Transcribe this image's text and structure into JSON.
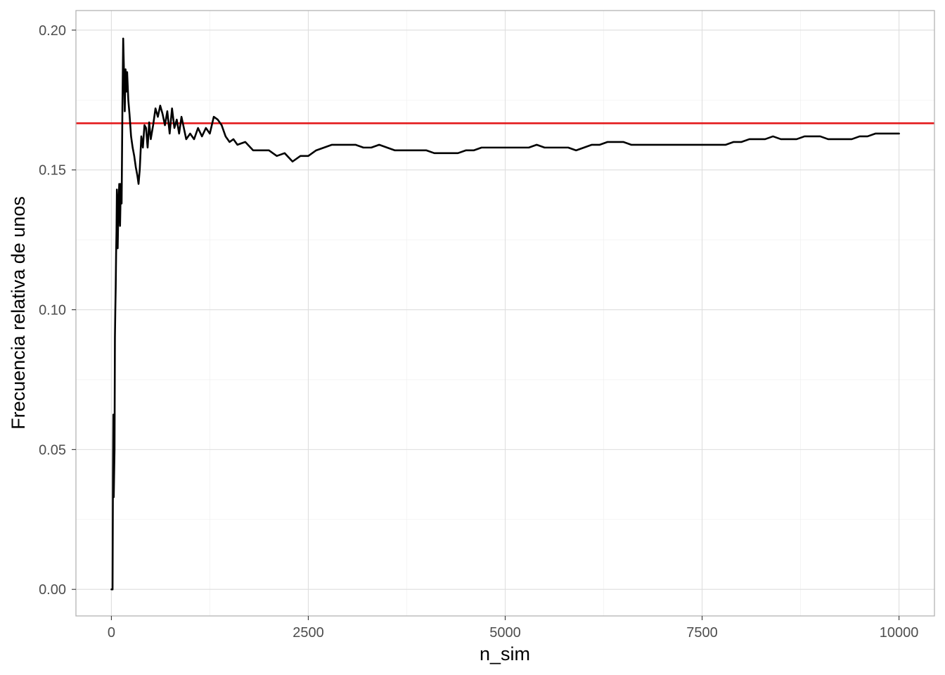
{
  "chart_data": {
    "type": "line",
    "title": "",
    "xlabel": "n_sim",
    "ylabel": "Frecuencia relativa de unos",
    "xlim": [
      -450,
      10450
    ],
    "ylim": [
      -0.0095,
      0.207
    ],
    "x_ticks": [
      0,
      2500,
      5000,
      7500,
      10000
    ],
    "x_tick_labels": [
      "0",
      "2500",
      "5000",
      "7500",
      "10000"
    ],
    "y_ticks": [
      0.0,
      0.05,
      0.1,
      0.15,
      0.2
    ],
    "y_tick_labels": [
      "0.00",
      "0.05",
      "0.10",
      "0.15",
      "0.20"
    ],
    "grid": true,
    "reference_line": {
      "y": 0.1667,
      "color": "#e41a1c"
    },
    "series": [
      {
        "color": "#000000",
        "points": [
          [
            1,
            0.0
          ],
          [
            15,
            0.0
          ],
          [
            20,
            0.04
          ],
          [
            25,
            0.0625
          ],
          [
            30,
            0.033
          ],
          [
            40,
            0.05
          ],
          [
            45,
            0.09
          ],
          [
            50,
            0.1
          ],
          [
            55,
            0.108
          ],
          [
            60,
            0.12
          ],
          [
            65,
            0.128
          ],
          [
            70,
            0.143
          ],
          [
            75,
            0.135
          ],
          [
            80,
            0.122
          ],
          [
            90,
            0.138
          ],
          [
            100,
            0.145
          ],
          [
            110,
            0.13
          ],
          [
            120,
            0.145
          ],
          [
            130,
            0.138
          ],
          [
            140,
            0.172
          ],
          [
            150,
            0.197
          ],
          [
            160,
            0.185
          ],
          [
            170,
            0.171
          ],
          [
            180,
            0.186
          ],
          [
            190,
            0.178
          ],
          [
            200,
            0.185
          ],
          [
            215,
            0.175
          ],
          [
            230,
            0.17
          ],
          [
            250,
            0.162
          ],
          [
            270,
            0.158
          ],
          [
            290,
            0.155
          ],
          [
            310,
            0.151
          ],
          [
            330,
            0.148
          ],
          [
            345,
            0.145
          ],
          [
            360,
            0.15
          ],
          [
            380,
            0.162
          ],
          [
            400,
            0.158
          ],
          [
            420,
            0.166
          ],
          [
            440,
            0.165
          ],
          [
            460,
            0.158
          ],
          [
            480,
            0.167
          ],
          [
            500,
            0.161
          ],
          [
            530,
            0.166
          ],
          [
            560,
            0.172
          ],
          [
            590,
            0.169
          ],
          [
            620,
            0.173
          ],
          [
            650,
            0.17
          ],
          [
            680,
            0.166
          ],
          [
            710,
            0.171
          ],
          [
            740,
            0.163
          ],
          [
            770,
            0.172
          ],
          [
            800,
            0.165
          ],
          [
            830,
            0.168
          ],
          [
            860,
            0.163
          ],
          [
            890,
            0.169
          ],
          [
            920,
            0.165
          ],
          [
            950,
            0.161
          ],
          [
            1000,
            0.163
          ],
          [
            1050,
            0.161
          ],
          [
            1100,
            0.165
          ],
          [
            1150,
            0.162
          ],
          [
            1200,
            0.165
          ],
          [
            1250,
            0.163
          ],
          [
            1300,
            0.169
          ],
          [
            1350,
            0.168
          ],
          [
            1400,
            0.166
          ],
          [
            1450,
            0.162
          ],
          [
            1500,
            0.16
          ],
          [
            1550,
            0.161
          ],
          [
            1600,
            0.159
          ],
          [
            1700,
            0.16
          ],
          [
            1800,
            0.157
          ],
          [
            1900,
            0.157
          ],
          [
            2000,
            0.157
          ],
          [
            2100,
            0.155
          ],
          [
            2200,
            0.156
          ],
          [
            2300,
            0.153
          ],
          [
            2400,
            0.155
          ],
          [
            2500,
            0.155
          ],
          [
            2600,
            0.157
          ],
          [
            2700,
            0.158
          ],
          [
            2800,
            0.159
          ],
          [
            2900,
            0.159
          ],
          [
            3000,
            0.159
          ],
          [
            3100,
            0.159
          ],
          [
            3200,
            0.158
          ],
          [
            3300,
            0.158
          ],
          [
            3400,
            0.159
          ],
          [
            3500,
            0.158
          ],
          [
            3600,
            0.157
          ],
          [
            3700,
            0.157
          ],
          [
            3800,
            0.157
          ],
          [
            3900,
            0.157
          ],
          [
            4000,
            0.157
          ],
          [
            4100,
            0.156
          ],
          [
            4200,
            0.156
          ],
          [
            4300,
            0.156
          ],
          [
            4400,
            0.156
          ],
          [
            4500,
            0.157
          ],
          [
            4600,
            0.157
          ],
          [
            4700,
            0.158
          ],
          [
            4800,
            0.158
          ],
          [
            4900,
            0.158
          ],
          [
            5000,
            0.158
          ],
          [
            5100,
            0.158
          ],
          [
            5200,
            0.158
          ],
          [
            5300,
            0.158
          ],
          [
            5400,
            0.159
          ],
          [
            5500,
            0.158
          ],
          [
            5600,
            0.158
          ],
          [
            5700,
            0.158
          ],
          [
            5800,
            0.158
          ],
          [
            5900,
            0.157
          ],
          [
            6000,
            0.158
          ],
          [
            6100,
            0.159
          ],
          [
            6200,
            0.159
          ],
          [
            6300,
            0.16
          ],
          [
            6400,
            0.16
          ],
          [
            6500,
            0.16
          ],
          [
            6600,
            0.159
          ],
          [
            6700,
            0.159
          ],
          [
            6800,
            0.159
          ],
          [
            6900,
            0.159
          ],
          [
            7000,
            0.159
          ],
          [
            7100,
            0.159
          ],
          [
            7200,
            0.159
          ],
          [
            7300,
            0.159
          ],
          [
            7400,
            0.159
          ],
          [
            7500,
            0.159
          ],
          [
            7600,
            0.159
          ],
          [
            7700,
            0.159
          ],
          [
            7800,
            0.159
          ],
          [
            7900,
            0.16
          ],
          [
            8000,
            0.16
          ],
          [
            8100,
            0.161
          ],
          [
            8200,
            0.161
          ],
          [
            8300,
            0.161
          ],
          [
            8400,
            0.162
          ],
          [
            8500,
            0.161
          ],
          [
            8600,
            0.161
          ],
          [
            8700,
            0.161
          ],
          [
            8800,
            0.162
          ],
          [
            8900,
            0.162
          ],
          [
            9000,
            0.162
          ],
          [
            9100,
            0.161
          ],
          [
            9200,
            0.161
          ],
          [
            9300,
            0.161
          ],
          [
            9400,
            0.161
          ],
          [
            9500,
            0.162
          ],
          [
            9600,
            0.162
          ],
          [
            9700,
            0.163
          ],
          [
            9800,
            0.163
          ],
          [
            9900,
            0.163
          ],
          [
            10000,
            0.163
          ]
        ]
      }
    ]
  }
}
